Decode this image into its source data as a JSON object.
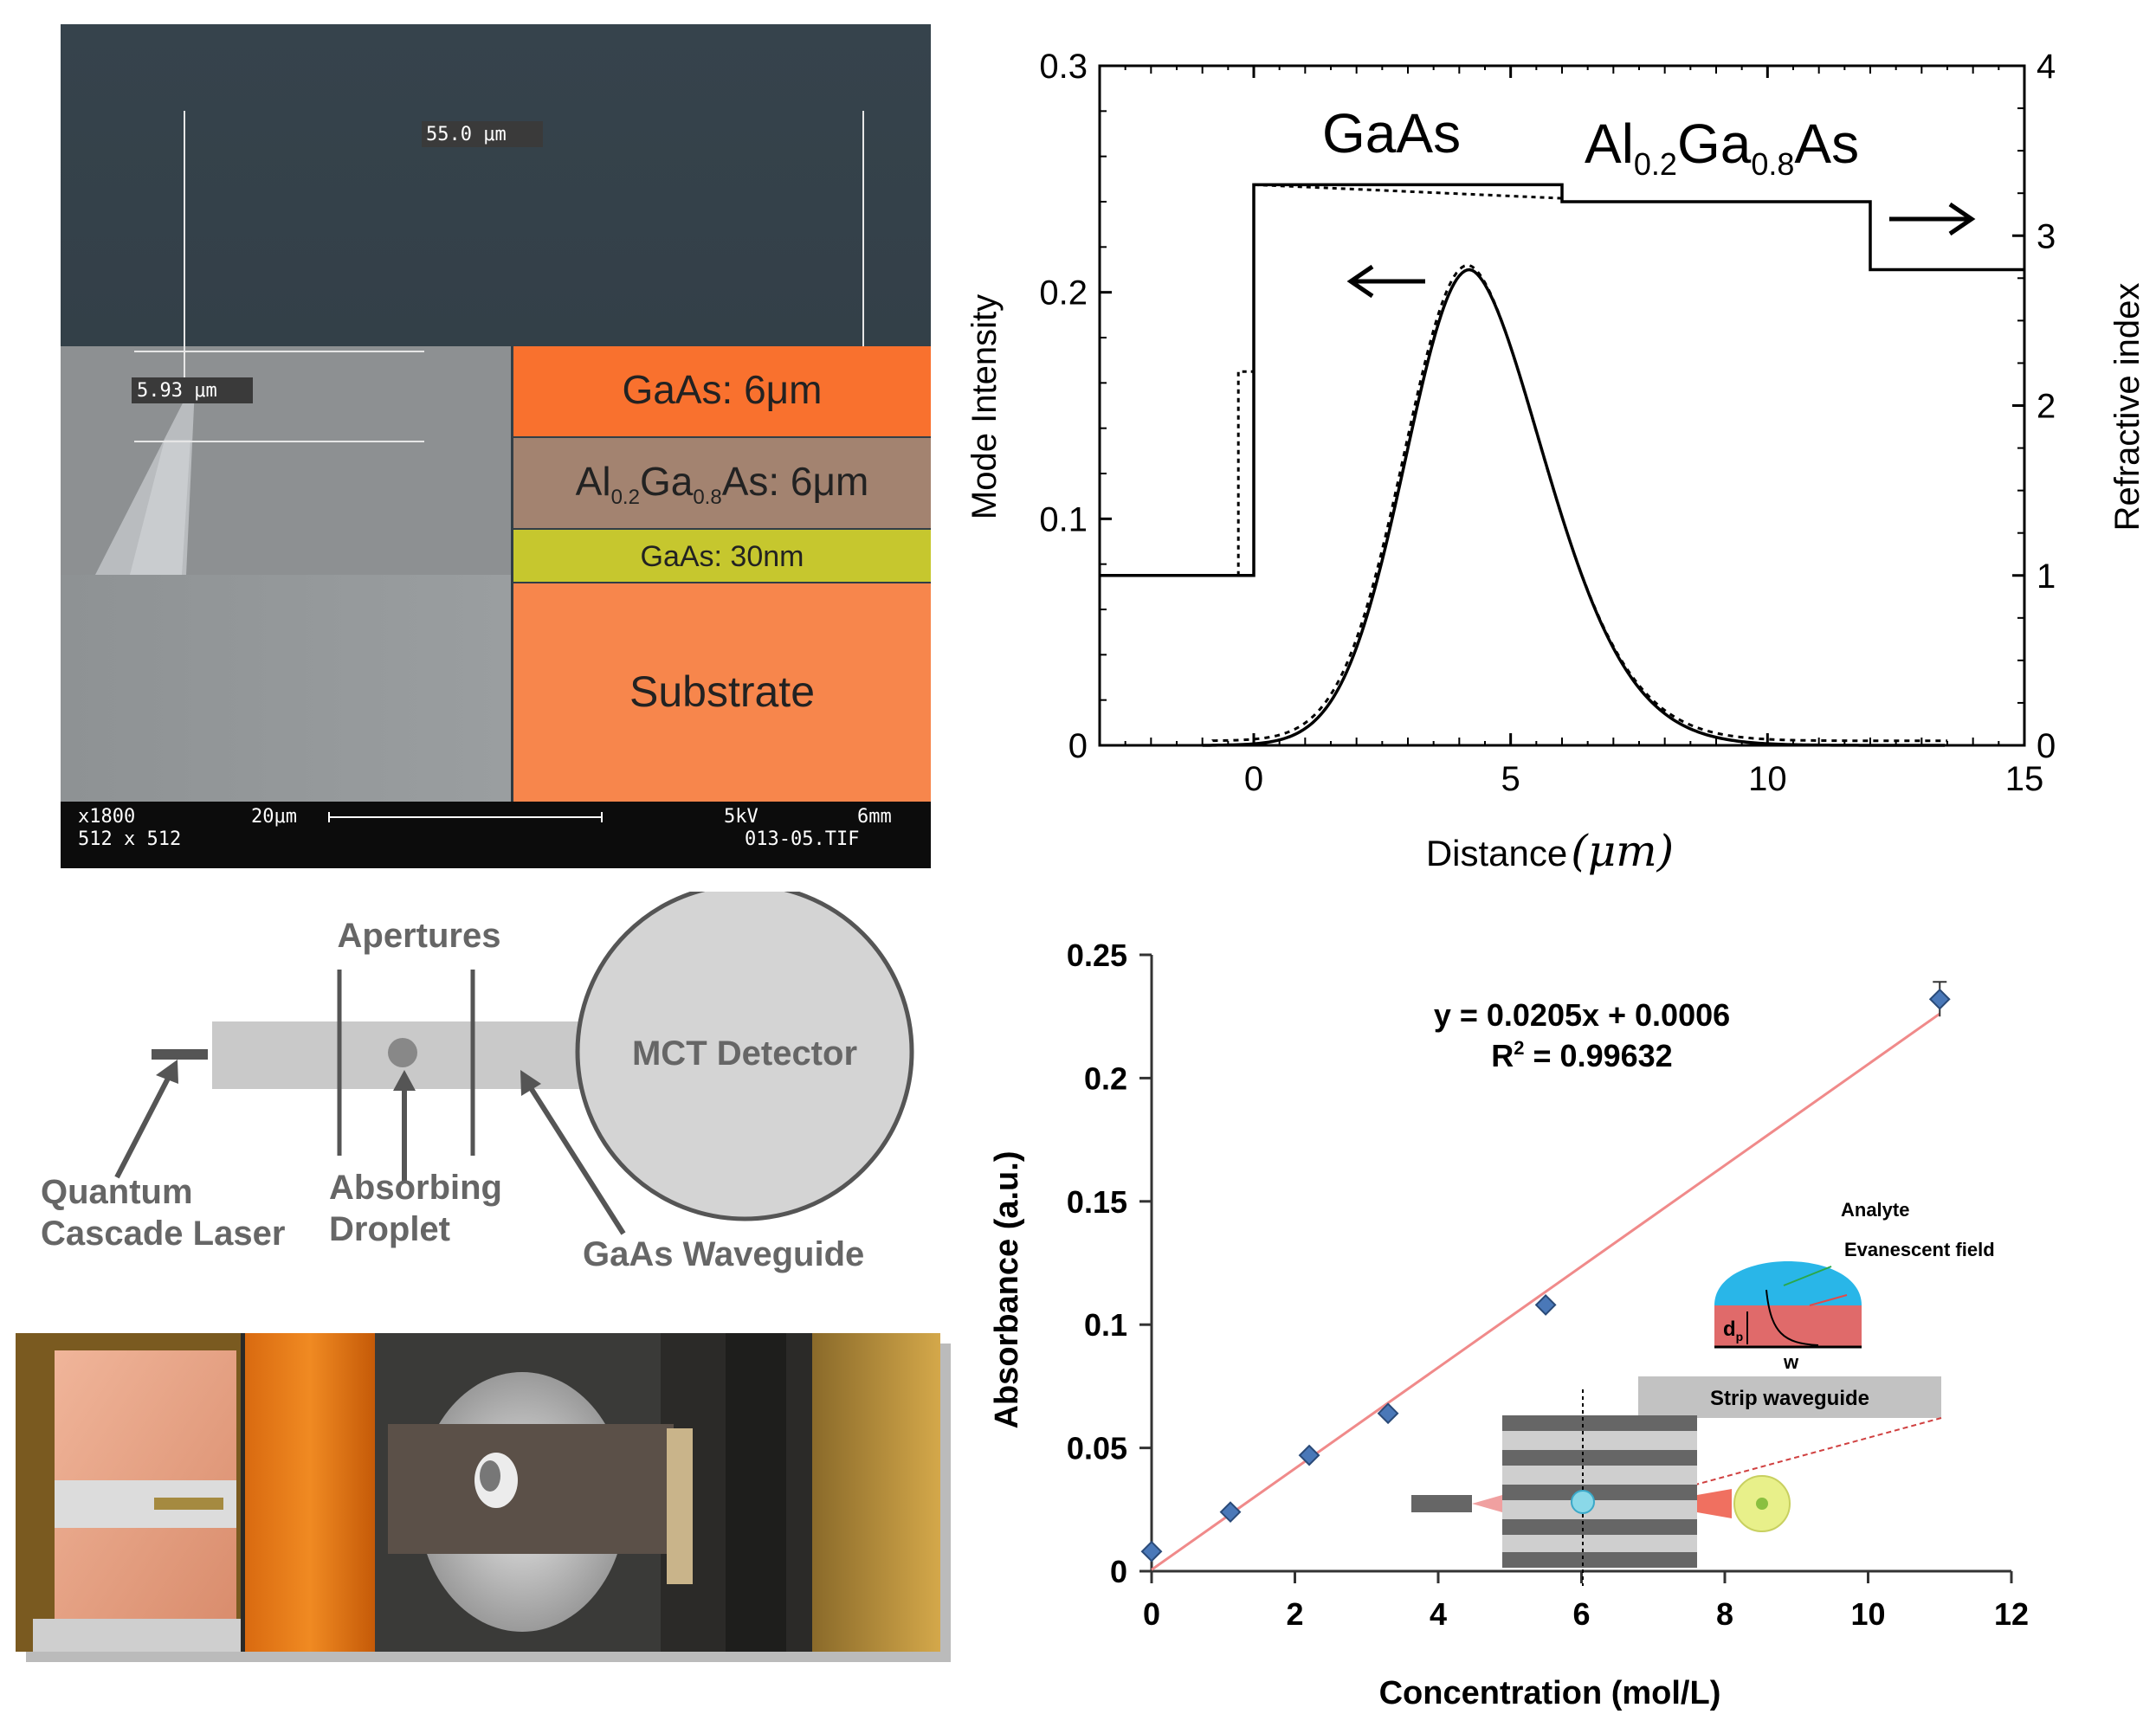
{
  "sem": {
    "measure_top": "55.0 μm",
    "measure_side": "5.93 μm",
    "footer_mag": "x1800",
    "footer_scale": "20μm",
    "footer_res": "512 x 512",
    "footer_kv": "5kV",
    "footer_wd": "6mm",
    "footer_file": "013-05.TIF",
    "layers": [
      {
        "label": "GaAs: 6μm",
        "color": "#f9712e"
      },
      {
        "label_pre": "Al",
        "sub1": "0.2",
        "label_mid": "Ga",
        "sub2": "0.8",
        "label_post": "As: 6μm",
        "color": "#a38370"
      },
      {
        "label": "GaAs: 30nm",
        "color": "#c6c72e"
      },
      {
        "label": "Substrate",
        "color": "#f7864c"
      }
    ]
  },
  "mode_chart": {
    "chart_data": {
      "type": "line",
      "xlabel_text": "Distance",
      "xlabel_unit": "(μm)",
      "ylabel_left": "Mode Intensity",
      "ylabel_right": "Refractive index",
      "xlim": [
        -3,
        15
      ],
      "ylim_left": [
        0,
        0.3
      ],
      "ylim_right": [
        0,
        4
      ],
      "xticks": [
        0,
        5,
        10,
        15
      ],
      "xtick_labels": [
        "0",
        "5",
        "10",
        "15"
      ],
      "yticks_left": [
        0,
        0.1,
        0.2,
        0.3
      ],
      "ytick_labels_left": [
        "0",
        "0.1",
        "0.2",
        "0.3"
      ],
      "yticks_right": [
        0,
        1,
        2,
        3,
        4
      ],
      "ytick_labels_right": [
        "0",
        "1",
        "2",
        "3",
        "4"
      ],
      "region_label_gaas": "GaAs",
      "region_label_algaas_pre": "Al",
      "region_label_algaas_sub1": "0.2",
      "region_label_algaas_mid": "Ga",
      "region_label_algaas_sub2": "0.8",
      "region_label_algaas_post": "As",
      "refractive_index_profile": {
        "x": [
          -3,
          0,
          0,
          6,
          6,
          12,
          12,
          15
        ],
        "n": [
          1.0,
          1.0,
          3.3,
          3.3,
          3.2,
          3.2,
          2.8,
          2.8
        ]
      },
      "mode_peak": {
        "x": 4.2,
        "intensity": 0.21
      }
    }
  },
  "setup": {
    "apertures": "Apertures",
    "detector": "MCT Detector",
    "qcl_line1": "Quantum",
    "qcl_line2": "Cascade Laser",
    "droplet_line1": "Absorbing",
    "droplet_line2": "Droplet",
    "waveguide": "GaAs Waveguide"
  },
  "absorbance_chart": {
    "chart_data": {
      "type": "scatter",
      "xlabel": "Concentration (mol/L)",
      "ylabel": "Absorbance (a.u.)",
      "xlim": [
        0,
        12
      ],
      "ylim": [
        0,
        0.25
      ],
      "xticks": [
        0,
        2,
        4,
        6,
        8,
        10,
        12
      ],
      "xtick_labels": [
        "0",
        "2",
        "4",
        "6",
        "8",
        "10",
        "12"
      ],
      "yticks": [
        0,
        0.05,
        0.1,
        0.15,
        0.2,
        0.25
      ],
      "ytick_labels": [
        "0",
        "0.05",
        "0.1",
        "0.15",
        "0.2",
        "0.25"
      ],
      "x": [
        0,
        1.1,
        2.2,
        3.3,
        5.5,
        11
      ],
      "y": [
        0.008,
        0.024,
        0.047,
        0.064,
        0.108,
        0.232
      ],
      "fit": {
        "slope": 0.0205,
        "intercept": 0.0006
      },
      "equation": "y = 0.0205x + 0.0006",
      "r2_pre": "R",
      "r2_sup": "2",
      "r2_post": " = 0.99632",
      "marker_color": "#4a78b8",
      "line_color": "#f08a8a"
    },
    "inset": {
      "analyte": "Analyte",
      "evanescent": "Evanescent field",
      "dp": "d",
      "dp_sub": "p",
      "w": "w",
      "strip": "Strip waveguide"
    }
  }
}
